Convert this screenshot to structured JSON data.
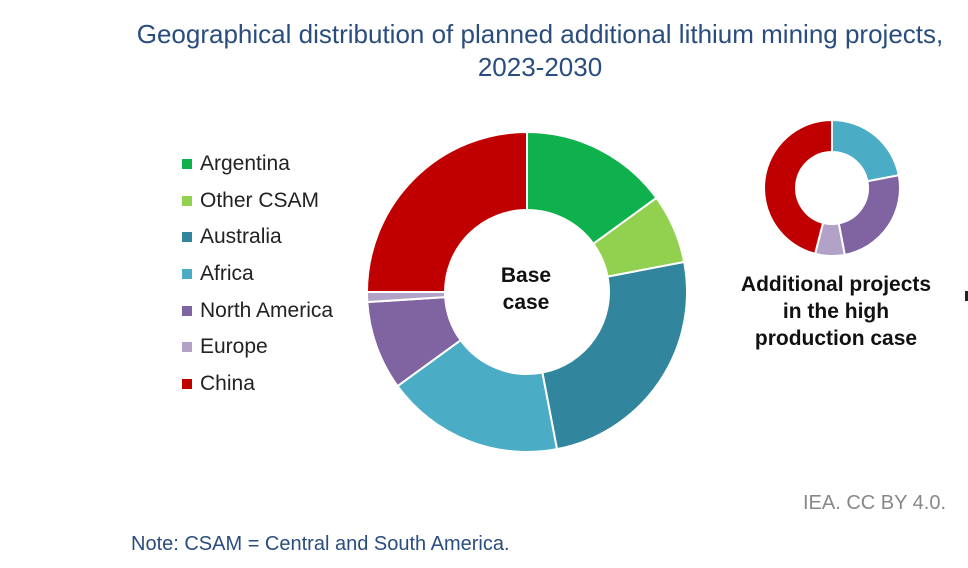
{
  "chart_data": [
    {
      "type": "pie",
      "title": "Geographical distribution of planned additional lithium mining projects, 2023-2030",
      "center_label": "Base case",
      "categories": [
        "Argentina",
        "Other CSAM",
        "Australia",
        "Africa",
        "North America",
        "Europe",
        "China"
      ],
      "colors": [
        "#0fb14d",
        "#92d050",
        "#31859c",
        "#4bacc6",
        "#8064a2",
        "#b3a2c7",
        "#c00000"
      ],
      "values": [
        15,
        7,
        25,
        18,
        9,
        1,
        25
      ],
      "unit": "%"
    },
    {
      "type": "pie",
      "label": "Additional projects in the high production case",
      "categories": [
        "Africa",
        "North America",
        "Europe",
        "China"
      ],
      "colors": [
        "#4bacc6",
        "#8064a2",
        "#b3a2c7",
        "#c00000"
      ],
      "values": [
        22,
        25,
        7,
        46
      ],
      "unit": "%"
    }
  ],
  "legend": [
    {
      "label": "Argentina",
      "color": "#0fb14d"
    },
    {
      "label": "Other CSAM",
      "color": "#92d050"
    },
    {
      "label": "Australia",
      "color": "#31859c"
    },
    {
      "label": "Africa",
      "color": "#4bacc6"
    },
    {
      "label": "North America",
      "color": "#8064a2"
    },
    {
      "label": "Europe",
      "color": "#b3a2c7"
    },
    {
      "label": "China",
      "color": "#c00000"
    }
  ],
  "text": {
    "title": "Geographical distribution of planned additional lithium mining projects, 2023-2030",
    "base_case_line1": "Base",
    "base_case_line2": "case",
    "high_case_line1": "Additional projects",
    "high_case_line2": "in the high",
    "high_case_line3": "production case",
    "source": "IEA. CC BY 4.0.",
    "note": "Note: CSAM = Central and South America."
  }
}
